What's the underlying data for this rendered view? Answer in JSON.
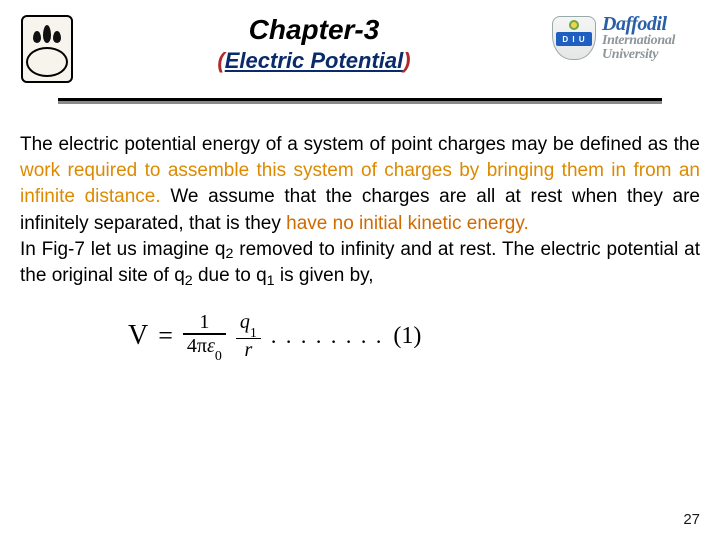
{
  "colors": {
    "background": "#ffffff",
    "text_primary": "#000000",
    "chapter_title": "#000000",
    "subtitle_paren": "#b02a2a",
    "subtitle_inner": "#0a2a6b",
    "accent_orange_light": "#dd8a00",
    "accent_orange_dark": "#d06a00",
    "rule_dark": "#000000",
    "rule_shadow": "#8a8a8a",
    "daffodil_blue": "#2a5fa8",
    "daffodil_gray": "#8d969b",
    "diu_band": "#1f5fbf",
    "page_number": "#1a1a1a"
  },
  "typography": {
    "body_family": "Verdana, Geneva, sans-serif",
    "serif_family": "Georgia, 'Times New Roman', serif",
    "chapter_title_pt": 28,
    "subtitle_pt": 22,
    "body_pt": 19,
    "equation_pt": 24,
    "logo_line1_pt": 20,
    "logo_line2_pt": 14,
    "page_number_pt": 15
  },
  "header": {
    "chapter_title": "Chapter-3",
    "subtitle_paren_left": "(",
    "subtitle_inner": "Electric Potential",
    "subtitle_paren_right": ")"
  },
  "logo_left": {
    "name": "university-seal",
    "flame_count": 3
  },
  "logo_right": {
    "badge_text": "D I U",
    "line1": "Daffodil",
    "line2": "International",
    "line3": "University"
  },
  "body": {
    "p1_a": "The electric potential energy of a system of point charges may be defined as the ",
    "p1_b": "work required to assemble this system of charges by bringing them in from an infinite distance.",
    "p1_c": " We assume that the charges are all at rest when they are infinitely separated, that is they ",
    "p1_d": "have no initial kinetic energy.",
    "p2_a": "In Fig-7 let us imagine q",
    "p2_b": " removed to infinity and at rest. The electric potential at the original site of q",
    "p2_c": " due to q",
    "p2_d": " is given by,",
    "sub_2": "2",
    "sub_1": "1"
  },
  "equation": {
    "lhs": "V",
    "equals": "=",
    "frac1_num": "1",
    "frac1_den_a": "4π",
    "frac1_den_eps": "ε",
    "frac1_den_sub": "0",
    "frac2_num_q": "q",
    "frac2_num_sub": "1",
    "frac2_den": "r",
    "dots": ". . . . . . . .",
    "number": "(1)"
  },
  "page_number": "27"
}
